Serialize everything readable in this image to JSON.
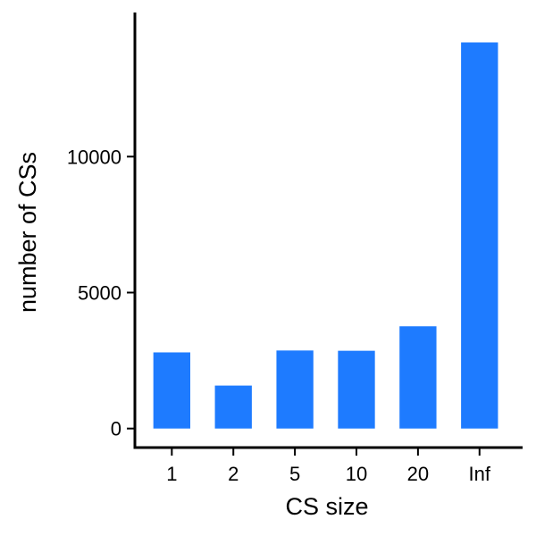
{
  "chart_data": {
    "type": "bar",
    "categories": [
      "1",
      "2",
      "5",
      "10",
      "20",
      "Inf"
    ],
    "values": [
      2800,
      1580,
      2870,
      2860,
      3760,
      14200
    ],
    "xlabel": "CS size",
    "ylabel": "number of CSs",
    "yticks": [
      0,
      5000,
      10000
    ],
    "ytick_labels": [
      "0",
      "5000",
      "10000"
    ],
    "ylim": [
      -700,
      15300
    ],
    "grid": false,
    "legend": "none",
    "bar_color": "#1E7BFF",
    "axis_color": "#000000"
  }
}
